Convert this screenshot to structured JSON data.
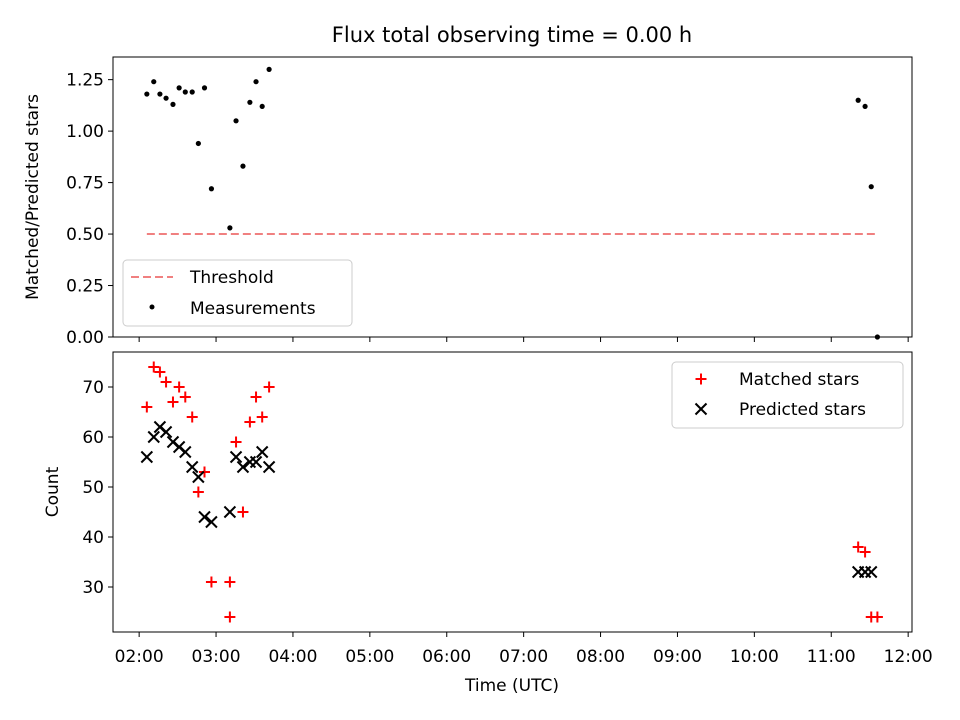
{
  "chart_data": [
    {
      "type": "scatter",
      "title": "Flux total observing time = 0.00 h",
      "xlabel": "",
      "ylabel": "Matched/Predicted stars",
      "xlim": [
        1.66,
        12.05
      ],
      "ylim": [
        0,
        1.36
      ],
      "yticks": [
        "0.00",
        "0.25",
        "0.50",
        "0.75",
        "1.00",
        "1.25"
      ],
      "ytick_values": [
        0,
        0.25,
        0.5,
        0.75,
        1.0,
        1.25
      ],
      "legend_position": "lower-left",
      "threshold": {
        "name": "Threshold",
        "value": 0.5,
        "x_start": 2.1,
        "x_end": 11.6,
        "color": "#f08080"
      },
      "series": [
        {
          "name": "Measurements",
          "color": "#000000",
          "x": [
            2.1,
            2.19,
            2.27,
            2.35,
            2.44,
            2.52,
            2.6,
            2.69,
            2.77,
            2.85,
            2.94,
            3.18,
            3.26,
            3.35,
            3.44,
            3.52,
            3.6,
            3.69,
            11.35,
            11.44,
            11.52,
            11.6
          ],
          "y": [
            1.18,
            1.24,
            1.18,
            1.16,
            1.13,
            1.21,
            1.19,
            1.19,
            0.94,
            1.21,
            0.72,
            0.53,
            1.05,
            0.83,
            1.14,
            1.24,
            1.12,
            1.3,
            1.15,
            1.12,
            0.73,
            0.0
          ]
        }
      ]
    },
    {
      "type": "scatter",
      "title": "",
      "xlabel": "Time (UTC)",
      "ylabel": "Count",
      "xlim": [
        1.66,
        12.05
      ],
      "ylim": [
        21,
        77
      ],
      "yticks": [
        "30",
        "40",
        "50",
        "60",
        "70"
      ],
      "ytick_values": [
        30,
        40,
        50,
        60,
        70
      ],
      "xticks": [
        "02:00",
        "03:00",
        "04:00",
        "05:00",
        "06:00",
        "07:00",
        "08:00",
        "09:00",
        "10:00",
        "11:00",
        "12:00"
      ],
      "xtick_values": [
        2,
        3,
        4,
        5,
        6,
        7,
        8,
        9,
        10,
        11,
        12
      ],
      "legend_position": "upper-right",
      "series": [
        {
          "name": "Matched stars",
          "marker": "plus",
          "color": "#ff0000",
          "x": [
            2.1,
            2.19,
            2.27,
            2.35,
            2.44,
            2.52,
            2.6,
            2.69,
            2.77,
            2.85,
            2.94,
            3.18,
            3.26,
            3.35,
            3.44,
            3.52,
            3.6,
            3.69,
            3.18,
            11.35,
            11.44,
            11.52,
            11.6
          ],
          "y": [
            66,
            74,
            73,
            71,
            67,
            70,
            68,
            64,
            49,
            53,
            31,
            31,
            59,
            45,
            63,
            68,
            64,
            70,
            24,
            38,
            37,
            24,
            24
          ]
        },
        {
          "name": "Predicted stars",
          "marker": "x",
          "color": "#000000",
          "x": [
            2.1,
            2.19,
            2.27,
            2.35,
            2.44,
            2.52,
            2.6,
            2.69,
            2.77,
            2.85,
            2.94,
            3.18,
            3.26,
            3.35,
            3.44,
            3.52,
            3.6,
            3.69,
            11.35,
            11.44,
            11.52
          ],
          "y": [
            56,
            60,
            62,
            61,
            59,
            58,
            57,
            54,
            52,
            44,
            43,
            45,
            56,
            54,
            55,
            55,
            57,
            54,
            33,
            33,
            33
          ]
        }
      ]
    }
  ]
}
